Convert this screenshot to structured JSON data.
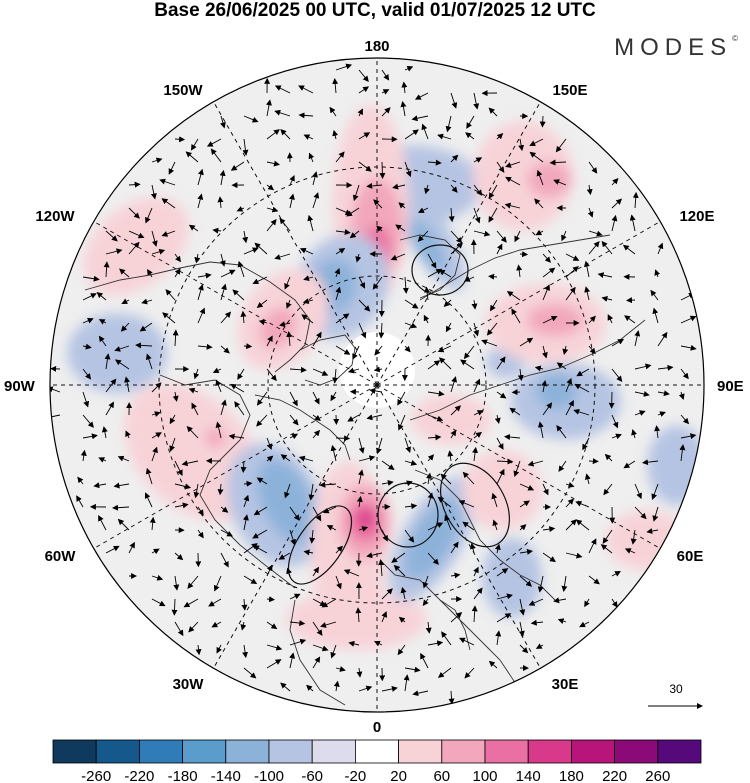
{
  "title": "Base 26/06/2025 00 UTC, valid 01/07/2025 12 UTC",
  "brand": "MODES",
  "brand_mark": "©",
  "longitudes": {
    "top": "180",
    "bottom": "0",
    "left": "90W",
    "right": "90E",
    "top_left": "150W",
    "top_right": "150E",
    "upper_left": "120W",
    "upper_right": "120E",
    "lower_left": "60W",
    "lower_right": "60E",
    "bottom_left": "30W",
    "bottom_right": "30E"
  },
  "reference_vector": "30",
  "colorbar": {
    "labels": [
      "-260",
      "-220",
      "-180",
      "-140",
      "-100",
      "-60",
      "-20",
      "20",
      "60",
      "100",
      "140",
      "180",
      "220",
      "260"
    ],
    "colors": [
      "#0f3a5e",
      "#15588c",
      "#2f7cb8",
      "#5a9ccc",
      "#8db2da",
      "#b6c4e3",
      "#dcdcec",
      "#ffffff",
      "#f7d3d8",
      "#f2a7bc",
      "#ea6fa2",
      "#d9398a",
      "#b8157a",
      "#8c0a78",
      "#55097a"
    ]
  },
  "anomaly_blobs": [
    {
      "c": "#b6c4e3",
      "lon": -170,
      "r": 0.62,
      "rx": 70,
      "ry": 40,
      "rot": 0
    },
    {
      "c": "#b6c4e3",
      "lon": -160,
      "r": 0.48,
      "rx": 20,
      "ry": 60,
      "rot": -30
    },
    {
      "c": "#8db2da",
      "lon": -160,
      "r": 0.45,
      "rx": 12,
      "ry": 30,
      "rot": -30
    },
    {
      "c": "#f7d3d8",
      "lon": -145,
      "r": 0.78,
      "rx": 50,
      "ry": 55,
      "rot": 0
    },
    {
      "c": "#f2a7bc",
      "lon": -140,
      "r": 0.82,
      "rx": 22,
      "ry": 18,
      "rot": 0
    },
    {
      "c": "#f7d3d8",
      "lon": 178,
      "r": 0.55,
      "rx": 38,
      "ry": 100,
      "rot": 0
    },
    {
      "c": "#f2a7bc",
      "lon": 180,
      "r": 0.48,
      "rx": 26,
      "ry": 50,
      "rot": 0
    },
    {
      "c": "#ea6fa2",
      "lon": 180,
      "r": 0.42,
      "rx": 14,
      "ry": 22,
      "rot": 0
    },
    {
      "c": "#b6c4e3",
      "lon": 160,
      "r": 0.32,
      "rx": 45,
      "ry": 55,
      "rot": 30
    },
    {
      "c": "#8db2da",
      "lon": 155,
      "r": 0.33,
      "rx": 24,
      "ry": 30,
      "rot": 30
    },
    {
      "c": "#5a9ccc",
      "lon": 150,
      "r": 0.34,
      "rx": 8,
      "ry": 10,
      "rot": 0
    },
    {
      "c": "#f7d3d8",
      "lon": 125,
      "r": 0.35,
      "rx": 40,
      "ry": 55,
      "rot": 35
    },
    {
      "c": "#f2a7bc",
      "lon": 120,
      "r": 0.35,
      "rx": 16,
      "ry": 22,
      "rot": 35
    },
    {
      "c": "#f7d3d8",
      "lon": 120,
      "r": 0.85,
      "rx": 60,
      "ry": 40,
      "rot": -40
    },
    {
      "c": "#b6c4e3",
      "lon": 97,
      "r": 0.8,
      "rx": 50,
      "ry": 40,
      "rot": 0
    },
    {
      "c": "#f7d3d8",
      "lon": 70,
      "r": 0.6,
      "rx": 80,
      "ry": 55,
      "rot": 45
    },
    {
      "c": "#f2a7bc",
      "lon": 72,
      "r": 0.52,
      "rx": 10,
      "ry": 10,
      "rot": 0
    },
    {
      "c": "#b6c4e3",
      "lon": 40,
      "r": 0.48,
      "rx": 45,
      "ry": 65,
      "rot": -25
    },
    {
      "c": "#8db2da",
      "lon": 38,
      "r": 0.45,
      "rx": 25,
      "ry": 45,
      "rot": -25
    },
    {
      "c": "#f7d3d8",
      "lon": 10,
      "r": 0.5,
      "rx": 38,
      "ry": 85,
      "rot": 0
    },
    {
      "c": "#f2a7bc",
      "lon": 5,
      "r": 0.42,
      "rx": 26,
      "ry": 38,
      "rot": 0
    },
    {
      "c": "#ea6fa2",
      "lon": 5,
      "r": 0.42,
      "rx": 16,
      "ry": 20,
      "rot": 0
    },
    {
      "c": "#d9398a",
      "lon": 5,
      "r": 0.41,
      "rx": 8,
      "ry": 10,
      "rot": 0
    },
    {
      "c": "#f7d3d8",
      "lon": 5,
      "r": 0.72,
      "rx": 70,
      "ry": 30,
      "rot": 0
    },
    {
      "c": "#b6c4e3",
      "lon": -20,
      "r": 0.5,
      "rx": 30,
      "ry": 70,
      "rot": 30
    },
    {
      "c": "#8db2da",
      "lon": -20,
      "r": 0.5,
      "rx": 20,
      "ry": 45,
      "rot": 30
    },
    {
      "c": "#b6c4e3",
      "lon": -35,
      "r": 0.72,
      "rx": 30,
      "ry": 40,
      "rot": 0
    },
    {
      "c": "#f7d3d8",
      "lon": -50,
      "r": 0.5,
      "rx": 40,
      "ry": 40,
      "rot": 0
    },
    {
      "c": "#b6c4e3",
      "lon": -85,
      "r": 0.58,
      "rx": 55,
      "ry": 38,
      "rot": 0
    },
    {
      "c": "#8db2da",
      "lon": -88,
      "r": 0.55,
      "rx": 20,
      "ry": 18,
      "rot": 0
    },
    {
      "c": "#b6c4e3",
      "lon": -100,
      "r": 0.4,
      "rx": 20,
      "ry": 16,
      "rot": 0
    },
    {
      "c": "#f7d3d8",
      "lon": -110,
      "r": 0.55,
      "rx": 60,
      "ry": 40,
      "rot": 0
    },
    {
      "c": "#f2a7bc",
      "lon": -110,
      "r": 0.58,
      "rx": 28,
      "ry": 16,
      "rot": 0
    },
    {
      "c": "#f7d3d8",
      "lon": -65,
      "r": 0.25,
      "rx": 40,
      "ry": 25,
      "rot": 0
    },
    {
      "c": "#b6c4e3",
      "lon": -75,
      "r": 0.95,
      "rx": 30,
      "ry": 40,
      "rot": 0
    },
    {
      "c": "#f7d3d8",
      "lon": -60,
      "r": 0.95,
      "rx": 40,
      "ry": 30,
      "rot": 0
    }
  ]
}
